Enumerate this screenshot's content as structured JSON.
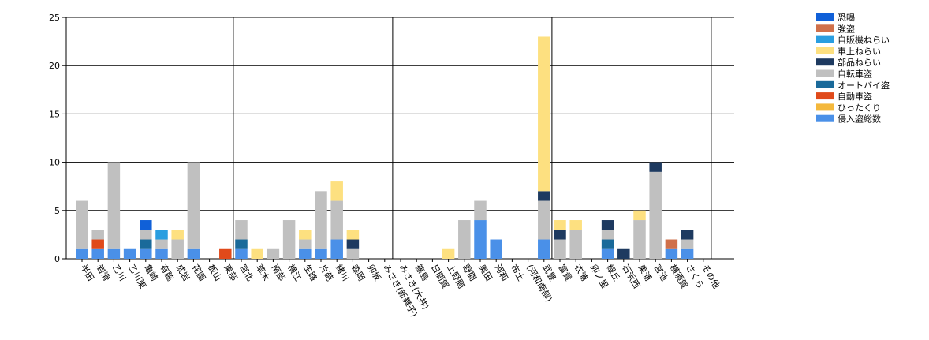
{
  "chart_data": {
    "type": "bar",
    "stacked": true,
    "ylim": [
      0,
      25
    ],
    "yticks": [
      0,
      5,
      10,
      15,
      20,
      25
    ],
    "grid": "horizontal",
    "legend_position": "right",
    "categories": [
      "半田",
      "岩滑",
      "乙川",
      "乙川東",
      "亀崎",
      "有脇",
      "成岩",
      "花園",
      "板山",
      "東部",
      "宮北",
      "草木",
      "南部",
      "横江",
      "生路",
      "片葩",
      "緒川",
      "森岡",
      "卯坂",
      "みさき(新舞子)",
      "みさき(大井)",
      "篠島",
      "日間賀",
      "上野間",
      "野間",
      "奥田",
      "河和",
      "布土",
      "(河和南部)",
      "武豊",
      "富貴",
      "衣浦",
      "卯ノ里",
      "緑丘",
      "石浜西",
      "東浦",
      "宮池",
      "横須賀",
      "さくら",
      "その他"
    ],
    "series": [
      {
        "name": "侵入盗総数",
        "color": "#4a90e8",
        "values": [
          1,
          1,
          1,
          1,
          1,
          1,
          0,
          1,
          0,
          0,
          1,
          0,
          0,
          0,
          1,
          1,
          2,
          0,
          0,
          0,
          0,
          0,
          0,
          0,
          0,
          4,
          2,
          0,
          0,
          2,
          0,
          0,
          0,
          1,
          0,
          0,
          0,
          1,
          1,
          0
        ]
      },
      {
        "name": "ひったくり",
        "color": "#f4b83c",
        "values": [
          0,
          0,
          0,
          0,
          0,
          0,
          0,
          0,
          0,
          0,
          0,
          0,
          0,
          0,
          0,
          0,
          0,
          0,
          0,
          0,
          0,
          0,
          0,
          0,
          0,
          0,
          0,
          0,
          0,
          0,
          0,
          0,
          0,
          0,
          0,
          0,
          0,
          0,
          0,
          0
        ]
      },
      {
        "name": "自動車盗",
        "color": "#e04a1a",
        "values": [
          0,
          1,
          0,
          0,
          0,
          0,
          0,
          0,
          0,
          1,
          0,
          0,
          0,
          0,
          0,
          0,
          0,
          0,
          0,
          0,
          0,
          0,
          0,
          0,
          0,
          0,
          0,
          0,
          0,
          0,
          0,
          0,
          0,
          0,
          0,
          0,
          0,
          0,
          0,
          0
        ]
      },
      {
        "name": "オートバイ盗",
        "color": "#1a6a9a",
        "values": [
          0,
          0,
          0,
          0,
          1,
          0,
          0,
          0,
          0,
          0,
          1,
          0,
          0,
          0,
          0,
          0,
          0,
          0,
          0,
          0,
          0,
          0,
          0,
          0,
          0,
          0,
          0,
          0,
          0,
          0,
          0,
          0,
          0,
          1,
          0,
          0,
          0,
          0,
          0,
          0
        ]
      },
      {
        "name": "自転車盗",
        "color": "#c0c0c0",
        "values": [
          5,
          1,
          9,
          0,
          1,
          1,
          2,
          9,
          0,
          0,
          2,
          0,
          1,
          4,
          1,
          6,
          4,
          1,
          0,
          0,
          0,
          0,
          0,
          0,
          4,
          2,
          0,
          0,
          0,
          4,
          2,
          3,
          0,
          1,
          0,
          4,
          9,
          0,
          1,
          0
        ]
      },
      {
        "name": "部品ねらい",
        "color": "#1e3a60",
        "values": [
          0,
          0,
          0,
          0,
          0,
          0,
          0,
          0,
          0,
          0,
          0,
          0,
          0,
          0,
          0,
          0,
          0,
          1,
          0,
          0,
          0,
          0,
          0,
          0,
          0,
          0,
          0,
          0,
          0,
          1,
          1,
          0,
          0,
          1,
          1,
          0,
          1,
          0,
          1,
          0
        ]
      },
      {
        "name": "車上ねらい",
        "color": "#fde080",
        "values": [
          0,
          0,
          0,
          0,
          0,
          0,
          1,
          0,
          0,
          0,
          0,
          1,
          0,
          0,
          1,
          0,
          2,
          1,
          0,
          0,
          0,
          0,
          0,
          1,
          0,
          0,
          0,
          0,
          0,
          16,
          1,
          1,
          0,
          0,
          0,
          1,
          0,
          0,
          0,
          0
        ]
      },
      {
        "name": "自販機ねらい",
        "color": "#2a9ee0",
        "values": [
          0,
          0,
          0,
          0,
          0,
          1,
          0,
          0,
          0,
          0,
          0,
          0,
          0,
          0,
          0,
          0,
          0,
          0,
          0,
          0,
          0,
          0,
          0,
          0,
          0,
          0,
          0,
          0,
          0,
          0,
          0,
          0,
          0,
          0,
          0,
          0,
          0,
          0,
          0,
          0
        ]
      },
      {
        "name": "強盗",
        "color": "#d0704a",
        "values": [
          0,
          0,
          0,
          0,
          0,
          0,
          0,
          0,
          0,
          0,
          0,
          0,
          0,
          0,
          0,
          0,
          0,
          0,
          0,
          0,
          0,
          0,
          0,
          0,
          0,
          0,
          0,
          0,
          0,
          0,
          0,
          0,
          0,
          0,
          0,
          0,
          0,
          1,
          0,
          0
        ]
      },
      {
        "name": "恐喝",
        "color": "#1060d8",
        "values": [
          0,
          0,
          0,
          0,
          1,
          0,
          0,
          0,
          0,
          0,
          0,
          0,
          0,
          0,
          0,
          0,
          0,
          0,
          0,
          0,
          0,
          0,
          0,
          0,
          0,
          0,
          0,
          0,
          0,
          0,
          0,
          0,
          0,
          0,
          0,
          0,
          0,
          0,
          0,
          0
        ]
      }
    ]
  }
}
